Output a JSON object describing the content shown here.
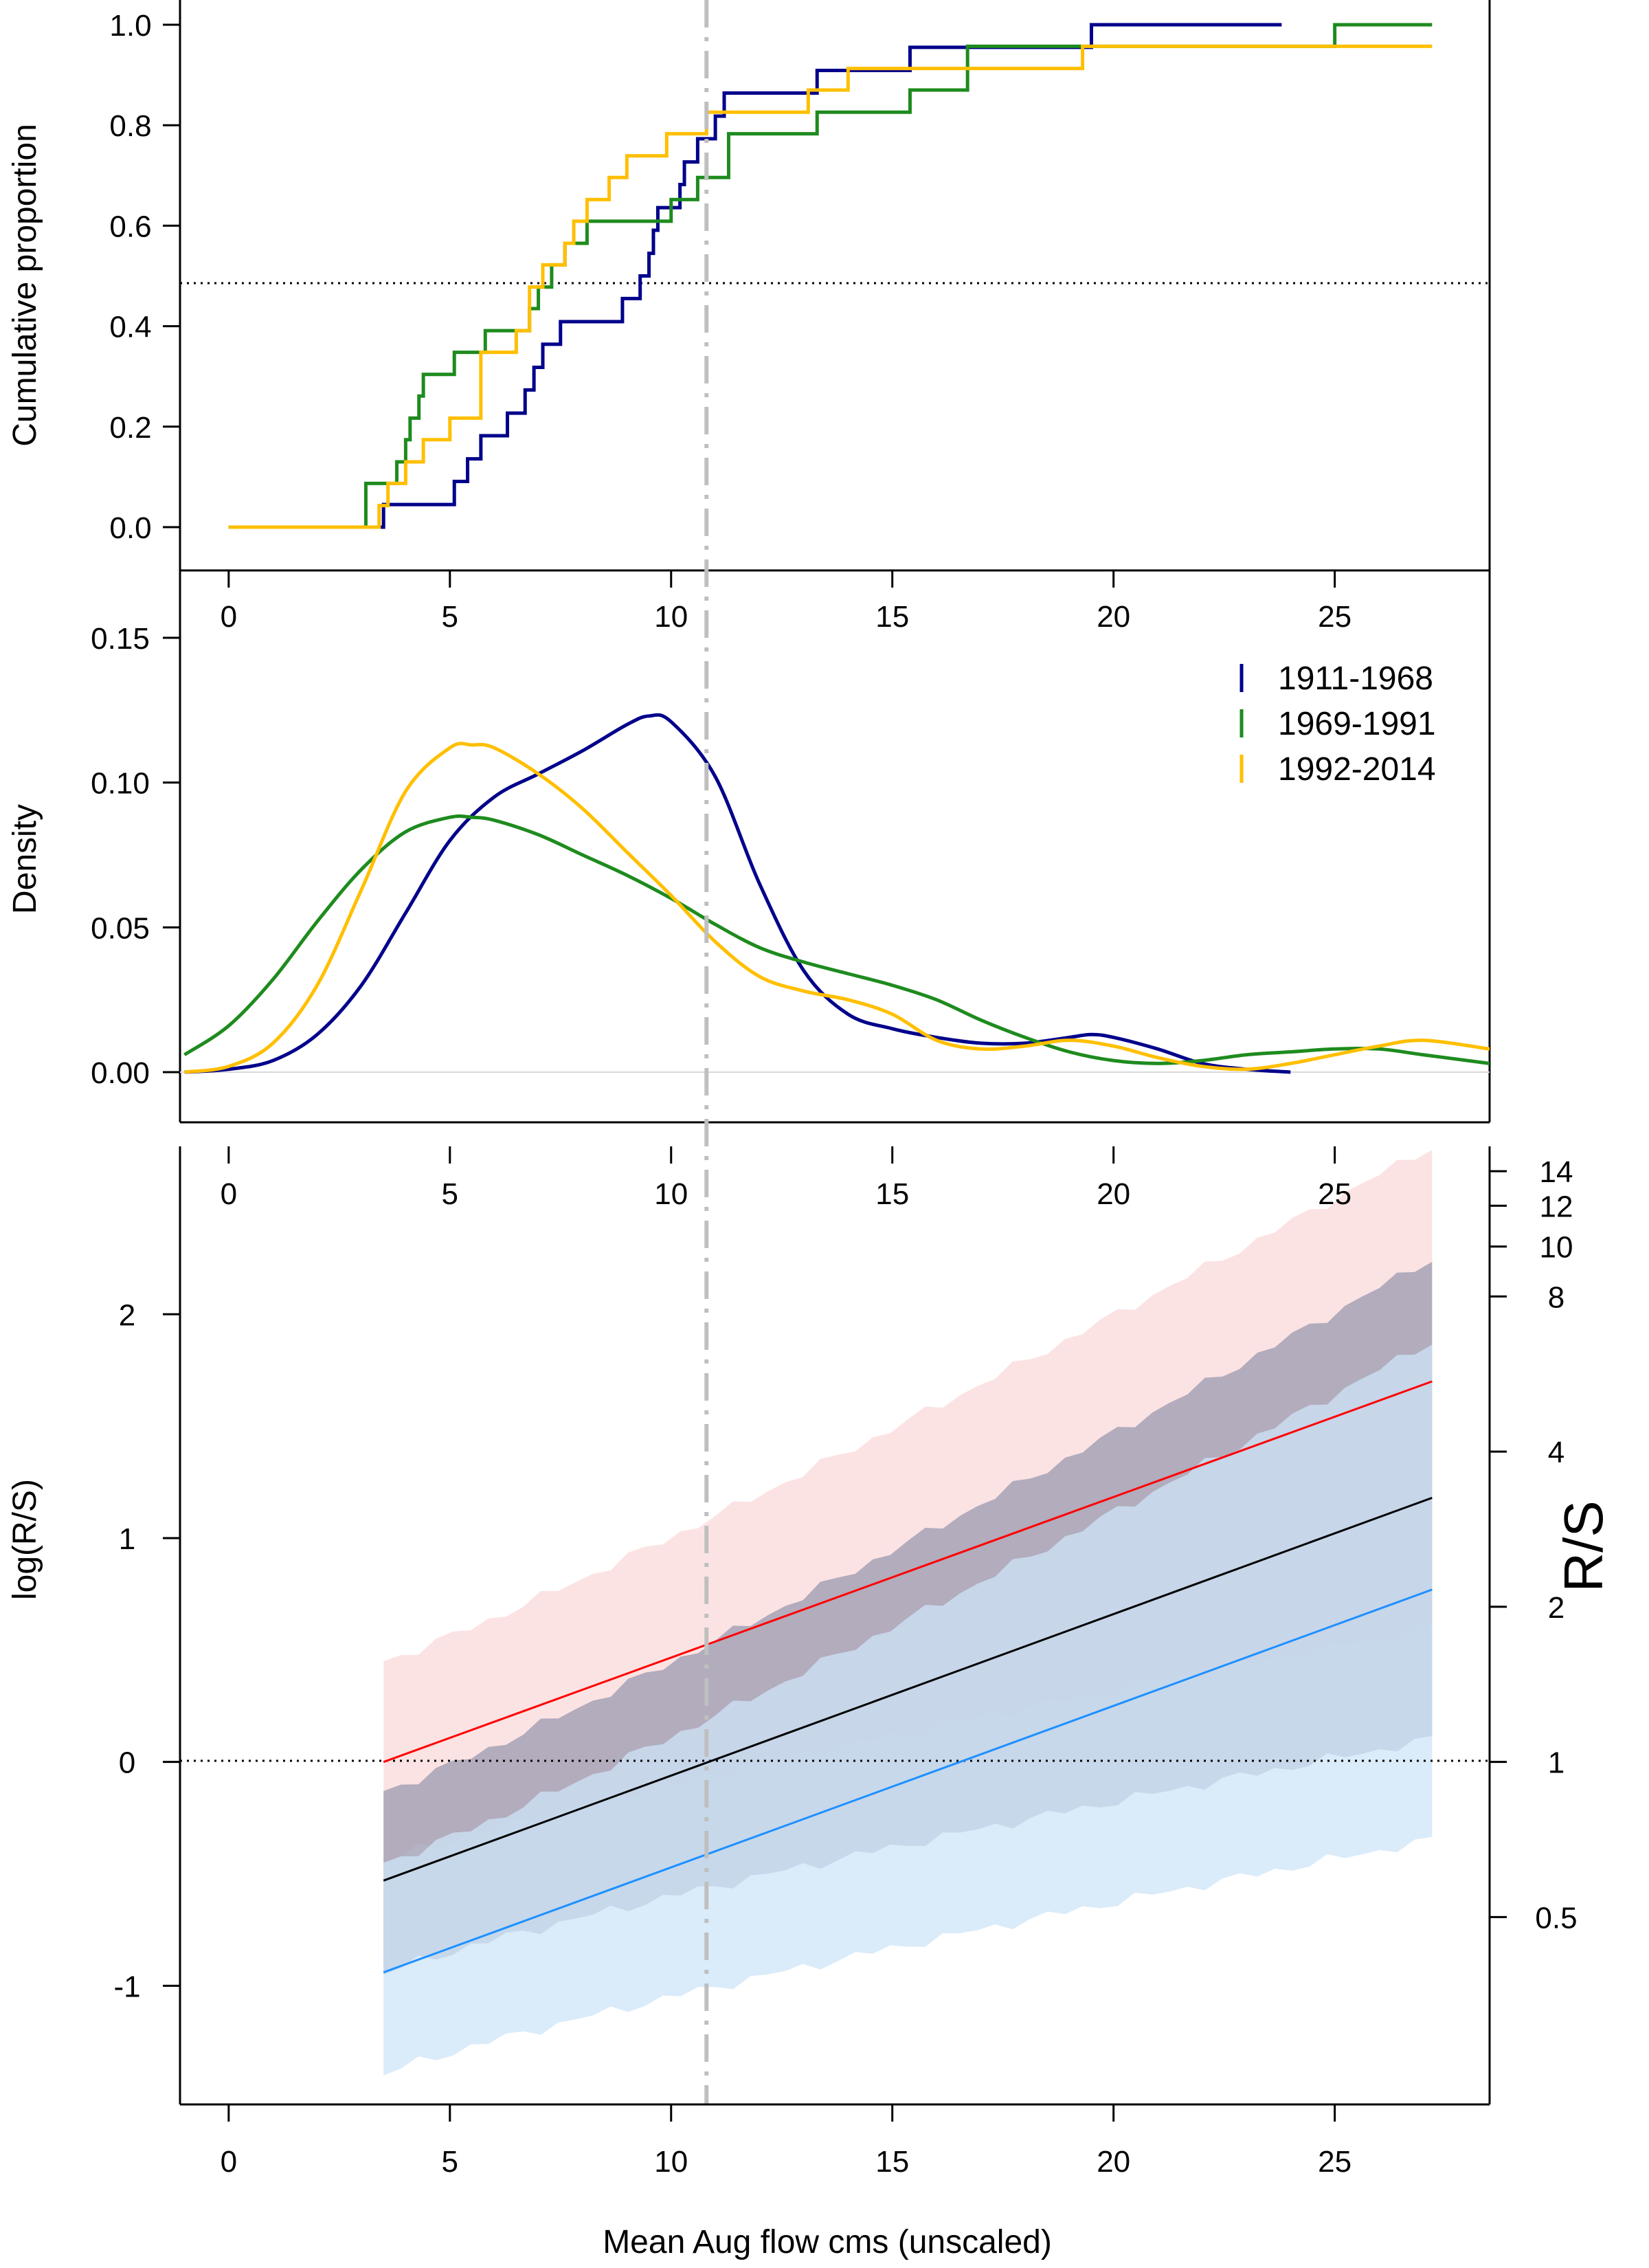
{
  "chart_data": [
    {
      "type": "line",
      "panel": "cumulative",
      "ylabel": "Cumulative proportion",
      "xlim": [
        -1.1,
        28.5
      ],
      "ylim": [
        0,
        1
      ],
      "x_ticks": [
        0,
        5,
        10,
        15,
        20,
        25
      ],
      "y_ticks": [
        "0.0",
        "0.2",
        "0.4",
        "0.6",
        "0.8",
        "1.0"
      ],
      "reference_h": 0.5,
      "reference_v": 10.8,
      "series": [
        {
          "name": "1911-1968",
          "color": "#00008B",
          "step": true,
          "x": [
            0,
            3.5,
            3.7,
            5.1,
            5.4,
            5.7,
            6.0,
            6.3,
            6.7,
            6.9,
            7.1,
            7.3,
            7.5,
            7.8,
            8.2,
            8.5,
            8.9,
            9.3,
            9.5,
            9.6,
            9.7,
            9.9,
            10.1,
            10.2,
            10.3,
            10.6,
            10.7,
            11.0,
            11.2,
            11.4,
            13.3,
            15.4,
            19.5,
            23.8
          ],
          "y": [
            0,
            0.045,
            0.045,
            0.091,
            0.136,
            0.182,
            0.182,
            0.227,
            0.273,
            0.318,
            0.364,
            0.364,
            0.409,
            0.409,
            0.409,
            0.409,
            0.455,
            0.5,
            0.545,
            0.591,
            0.636,
            0.636,
            0.636,
            0.682,
            0.727,
            0.773,
            0.773,
            0.818,
            0.864,
            0.864,
            0.909,
            0.955,
            1.0,
            1.0
          ]
        },
        {
          "name": "1969-1991",
          "color": "#1E8B1E",
          "step": true,
          "x": [
            0,
            3.1,
            3.4,
            3.8,
            4.0,
            4.1,
            4.3,
            4.4,
            5.1,
            5.4,
            5.8,
            6.0,
            6.8,
            7.0,
            7.3,
            7.6,
            8.1,
            10.0,
            10.6,
            11.3,
            13.3,
            15.4,
            16.7,
            25.0,
            27.2
          ],
          "y": [
            0,
            0.087,
            0.087,
            0.13,
            0.174,
            0.217,
            0.261,
            0.304,
            0.348,
            0.348,
            0.391,
            0.391,
            0.435,
            0.478,
            0.522,
            0.565,
            0.609,
            0.652,
            0.696,
            0.783,
            0.826,
            0.87,
            0.957,
            1.0,
            1.0
          ]
        },
        {
          "name": "1992-2014",
          "color": "#FFBF00",
          "step": true,
          "x": [
            0,
            3.4,
            3.6,
            4.0,
            4.4,
            5.0,
            5.7,
            6.5,
            6.8,
            7.1,
            7.6,
            7.8,
            8.1,
            8.6,
            9.0,
            9.9,
            10.8,
            13.1,
            14.0,
            19.3,
            27.2
          ],
          "y": [
            0,
            0.043,
            0.087,
            0.13,
            0.174,
            0.217,
            0.348,
            0.391,
            0.478,
            0.522,
            0.565,
            0.609,
            0.652,
            0.696,
            0.739,
            0.783,
            0.826,
            0.87,
            0.913,
            0.957,
            0.957
          ]
        }
      ]
    },
    {
      "type": "line",
      "panel": "density",
      "ylabel": "Density",
      "xlim": [
        -1.1,
        28.5
      ],
      "ylim": [
        0,
        0.15
      ],
      "x_ticks": [
        0,
        5,
        10,
        15,
        20,
        25
      ],
      "y_ticks": [
        "0.00",
        "0.05",
        "0.10",
        "0.15"
      ],
      "legend_position": "top-right",
      "series": [
        {
          "name": "1911-1968",
          "color": "#00008B",
          "x": [
            -1,
            0,
            1,
            2,
            3,
            4,
            5,
            6,
            7,
            8,
            9,
            9.5,
            10,
            11,
            12,
            13,
            14,
            15,
            16,
            17,
            18,
            19,
            19.5,
            20,
            21,
            22,
            23,
            24
          ],
          "y": [
            0,
            0.001,
            0.004,
            0.013,
            0.03,
            0.055,
            0.08,
            0.095,
            0.103,
            0.111,
            0.12,
            0.123,
            0.121,
            0.102,
            0.065,
            0.035,
            0.02,
            0.015,
            0.012,
            0.01,
            0.01,
            0.012,
            0.013,
            0.012,
            0.008,
            0.003,
            0.001,
            0
          ]
        },
        {
          "name": "1969-1991",
          "color": "#1E8B1E",
          "x": [
            -1,
            0,
            1,
            2,
            3,
            4,
            5,
            5.5,
            6,
            7,
            8,
            9,
            10,
            11,
            12,
            13,
            14,
            15,
            16,
            17,
            18,
            19,
            20,
            21,
            22,
            23,
            24,
            25,
            26,
            27,
            28.5
          ],
          "y": [
            0.006,
            0.016,
            0.032,
            0.052,
            0.07,
            0.083,
            0.088,
            0.088,
            0.087,
            0.082,
            0.075,
            0.068,
            0.06,
            0.051,
            0.043,
            0.038,
            0.034,
            0.03,
            0.025,
            0.018,
            0.012,
            0.007,
            0.004,
            0.003,
            0.004,
            0.006,
            0.007,
            0.008,
            0.008,
            0.006,
            0.003
          ]
        },
        {
          "name": "1992-2014",
          "color": "#FFBF00",
          "x": [
            -1,
            0,
            1,
            2,
            3,
            4,
            5,
            5.5,
            6,
            7,
            8,
            9,
            10,
            11,
            12,
            13,
            14,
            15,
            16,
            17,
            18,
            19,
            20,
            21,
            22,
            23,
            24,
            25,
            26,
            27,
            28.5
          ],
          "y": [
            0,
            0.002,
            0.01,
            0.03,
            0.063,
            0.097,
            0.112,
            0.113,
            0.112,
            0.103,
            0.091,
            0.076,
            0.061,
            0.045,
            0.033,
            0.028,
            0.025,
            0.02,
            0.011,
            0.008,
            0.009,
            0.011,
            0.009,
            0.005,
            0.002,
            0.001,
            0.003,
            0.006,
            0.009,
            0.011,
            0.008
          ]
        }
      ]
    },
    {
      "type": "area",
      "panel": "recruitment",
      "ylabel": "log(R/S)",
      "xlabel": "Mean Aug flow cms (unscaled)",
      "y2label": "R/S",
      "xlim": [
        -1.1,
        28.5
      ],
      "ylim": [
        -1.53,
        2.75
      ],
      "x_ticks": [
        0,
        5,
        10,
        15,
        20,
        25
      ],
      "y_ticks": [
        -1,
        0,
        1,
        2
      ],
      "y2_ticks": [
        "0.5",
        "1",
        "2",
        "4",
        "8",
        "10",
        "12",
        "14"
      ],
      "reference_h": 0,
      "reference_v": 10.8,
      "series": [
        {
          "name": "",
          "color": "#FF0000",
          "fill": "#FBDADA",
          "x": [
            3.5,
            27.2
          ],
          "y": [
            0.0,
            1.7
          ],
          "lower": [
            -0.45,
            0.6
          ],
          "upper": [
            0.45,
            2.75
          ]
        },
        {
          "name": "",
          "color": "#000000",
          "fill": "#9A9AB0",
          "x": [
            3.5,
            27.2
          ],
          "y": [
            -0.53,
            1.18
          ],
          "lower": [
            -0.95,
            0.1
          ],
          "upper": [
            -0.13,
            2.25
          ]
        },
        {
          "name": "",
          "color": "#1E90FF",
          "fill": "#CDE4F8",
          "x": [
            3.5,
            27.2
          ],
          "y": [
            -0.94,
            0.77
          ],
          "lower": [
            -1.4,
            -0.35
          ],
          "upper": [
            -0.45,
            1.88
          ]
        }
      ]
    }
  ],
  "legend": {
    "items": [
      {
        "label": "1911-1968",
        "color": "#00008B"
      },
      {
        "label": "1969-1991",
        "color": "#1E8B1E"
      },
      {
        "label": "1992-2014",
        "color": "#FFBF00"
      }
    ]
  }
}
